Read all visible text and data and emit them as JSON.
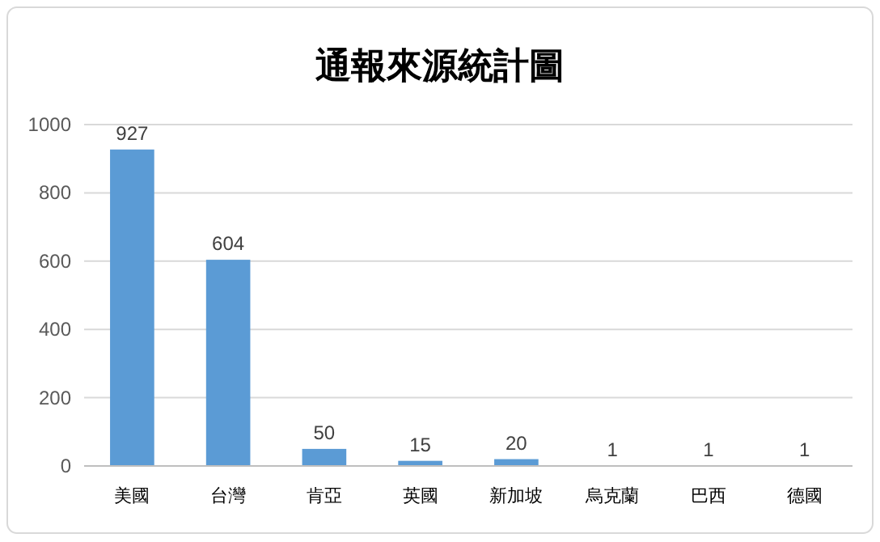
{
  "chart_data": {
    "type": "bar",
    "title": "通報來源統計圖",
    "categories": [
      "美國",
      "台灣",
      "肯亞",
      "英國",
      "新加坡",
      "烏克蘭",
      "巴西",
      "德國"
    ],
    "values": [
      927,
      604,
      50,
      15,
      20,
      1,
      1,
      1
    ],
    "color": "#5b9bd5",
    "ylim": [
      0,
      1000
    ],
    "yticks": [
      0,
      200,
      400,
      600,
      800,
      1000
    ],
    "grid": "y",
    "data_labels": true
  }
}
